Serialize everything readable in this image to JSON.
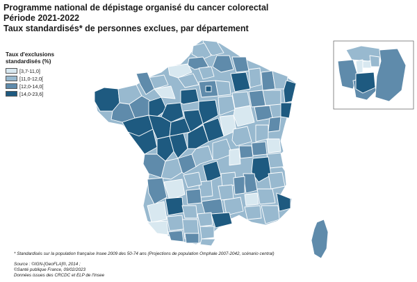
{
  "header": {
    "title_line1": "Programme national de dépistage organisé du cancer colorectal",
    "title_line2": "Période 2021-2022",
    "title_line3": "Taux standardisés* de personnes exclues, par département"
  },
  "legend": {
    "title": "Taux d'exclusions standardisés (%)",
    "classes": [
      {
        "label": "[3,7-11,0]",
        "color": "#d8e8f0"
      },
      {
        "label": "[11,0-12,0[",
        "color": "#98b9cf"
      },
      {
        "label": "[12,0-14,0[",
        "color": "#5f8bab"
      },
      {
        "label": "[14,0-23,6]",
        "color": "#1e5a80"
      }
    ]
  },
  "footnote": "* Standardisés sur la population française Insee 2009 des 50-74 ans (Projections de population Omphale 2007-2042, scénario central)",
  "sources": {
    "line1": "Source : ©IGN-[GeoFLA]®, 2014 ;",
    "line2": "©Santé publique France, 09/02/2023",
    "line3": "Données issues des CRCDC et ELP de l'Insee"
  }
}
